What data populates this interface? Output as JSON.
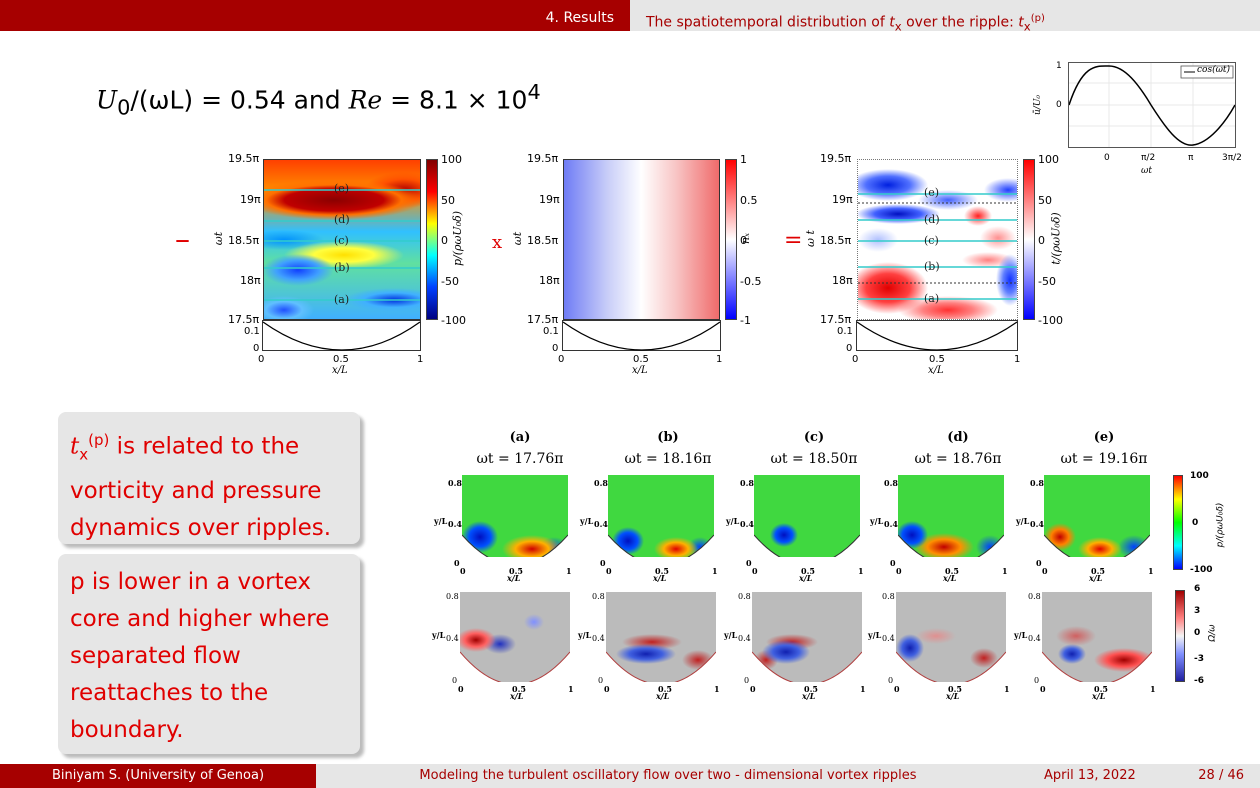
{
  "header": {
    "section": "4. Results",
    "subtitle_text": "The spatiotemporal distribution of",
    "subtitle_var": "t",
    "subtitle_sub": "x",
    "subtitle_mid": "over the ripple:",
    "subtitle_var2": "t",
    "subtitle_sub2": "x",
    "subtitle_sup2": "(p)"
  },
  "equation": {
    "lhs": "U",
    "lhs_sub": "0",
    "lhs_den": "/(ωL) = 0.54 and ",
    "re": "Re",
    "rhs": " = 8.1 × 10",
    "rhs_sup": "4"
  },
  "top_panels": {
    "yticks": [
      "19.5π",
      "19π",
      "18.5π",
      "18π",
      "17.5π"
    ],
    "xticks": [
      "0",
      "0.5",
      "1"
    ],
    "xlabel": "x/L",
    "small_ytick_top": "0.1",
    "small_ytick_bottom": "0",
    "small_ylabel": "η/L",
    "panel1": {
      "ylabel": "ωt",
      "cbar_ticks": [
        "100",
        "50",
        "0",
        "-50",
        "-100"
      ],
      "cbar_label": "p/(ρωU₀δ)",
      "markers": [
        "(e)",
        "(d)",
        "(c)",
        "(b)",
        "(a)"
      ]
    },
    "panel2": {
      "ylabel": "ωt",
      "cbar_ticks": [
        "1",
        "0.5",
        "0",
        "-0.5",
        "-1"
      ],
      "cbar_label": "nₓ"
    },
    "panel3": {
      "ylabel": "ω t",
      "cbar_ticks": [
        "100",
        "50",
        "0",
        "-50",
        "-100"
      ],
      "cbar_label": "t/(ρωU₀δ)",
      "markers": [
        "(e)",
        "(d)",
        "(c)",
        "(b)",
        "(a)"
      ]
    },
    "operators": {
      "minus": "–",
      "times": "x",
      "equals": "="
    }
  },
  "cos_plot": {
    "legend": "cos(ωt)",
    "ylabel": "ũ/U₀",
    "xlabel": "ωt",
    "yticks": [
      "1",
      "0"
    ],
    "xticks": [
      "0",
      "π/2",
      "π",
      "3π/2"
    ]
  },
  "text_boxes": {
    "box1_var": "t",
    "box1_sub": "x",
    "box1_sup": "(p)",
    "box1_text": " is related to the vorticity and pressure dynamics over ripples.",
    "box2_text": "p is lower in a vortex core and higher where separated flow reattaches to the boundary."
  },
  "snapshots": {
    "items": [
      {
        "label": "(a)",
        "time": "ωt = 17.76π"
      },
      {
        "label": "(b)",
        "time": "ωt = 18.16π"
      },
      {
        "label": "(c)",
        "time": "ωt = 18.50π"
      },
      {
        "label": "(d)",
        "time": "ωt = 18.76π"
      },
      {
        "label": "(e)",
        "time": "ωt = 19.16π"
      }
    ],
    "ytick_top": "0.8",
    "ytick_mid": "0.4",
    "ytick_bot": "0",
    "ylabel": "y/L",
    "xlabel": "x/L",
    "xticks": [
      "0",
      "0.5",
      "1"
    ],
    "pressure_cbar": {
      "ticks": [
        "100",
        "0",
        "-100"
      ],
      "label": "p/(ρωU₀δ)"
    },
    "vorticity_cbar": {
      "ticks": [
        "6",
        "3",
        "0",
        "-3",
        "-6"
      ],
      "label": "Ω/ω"
    }
  },
  "footer": {
    "author": "Biniyam S.  (University of Genoa)",
    "title": "Modeling the turbulent oscillatory flow over two - dimensional vortex ripples",
    "date": "April 13, 2022",
    "page": "28 / 46"
  },
  "colors": {
    "accent": "#a60000",
    "text_red": "#e00000",
    "band": "#e6e6e6"
  }
}
